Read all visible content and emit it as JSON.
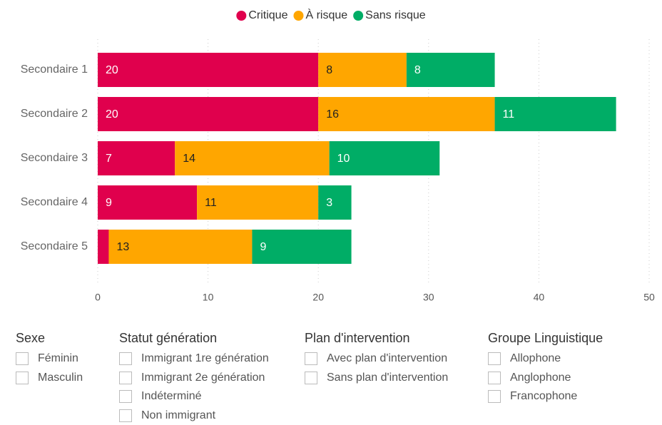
{
  "chart_data": {
    "type": "stacked-bar-horizontal",
    "categories": [
      "Secondaire 1",
      "Secondaire 2",
      "Secondaire 3",
      "Secondaire 4",
      "Secondaire 5"
    ],
    "series": [
      {
        "name": "Critique",
        "color": "#e0004d",
        "values": [
          20,
          20,
          7,
          9,
          1
        ]
      },
      {
        "name": "À risque",
        "color": "#ffa600",
        "values": [
          8,
          16,
          14,
          11,
          13
        ]
      },
      {
        "name": "Sans risque",
        "color": "#00ad66",
        "values": [
          8,
          11,
          10,
          3,
          9
        ]
      }
    ],
    "xlim": [
      0,
      50
    ],
    "xticks": [
      0,
      10,
      20,
      30,
      40,
      50
    ],
    "grid": true,
    "legend": "top"
  },
  "filters": [
    {
      "title": "Sexe",
      "options": [
        "Féminin",
        "Masculin"
      ]
    },
    {
      "title": "Statut génération",
      "options": [
        "Immigrant 1re génération",
        "Immigrant 2e génération",
        "Indéterminé",
        "Non immigrant"
      ]
    },
    {
      "title": "Plan d'intervention",
      "options": [
        "Avec plan d'intervention",
        "Sans plan d'intervention"
      ]
    },
    {
      "title": "Groupe Linguistique",
      "options": [
        "Allophone",
        "Anglophone",
        "Francophone"
      ]
    }
  ]
}
